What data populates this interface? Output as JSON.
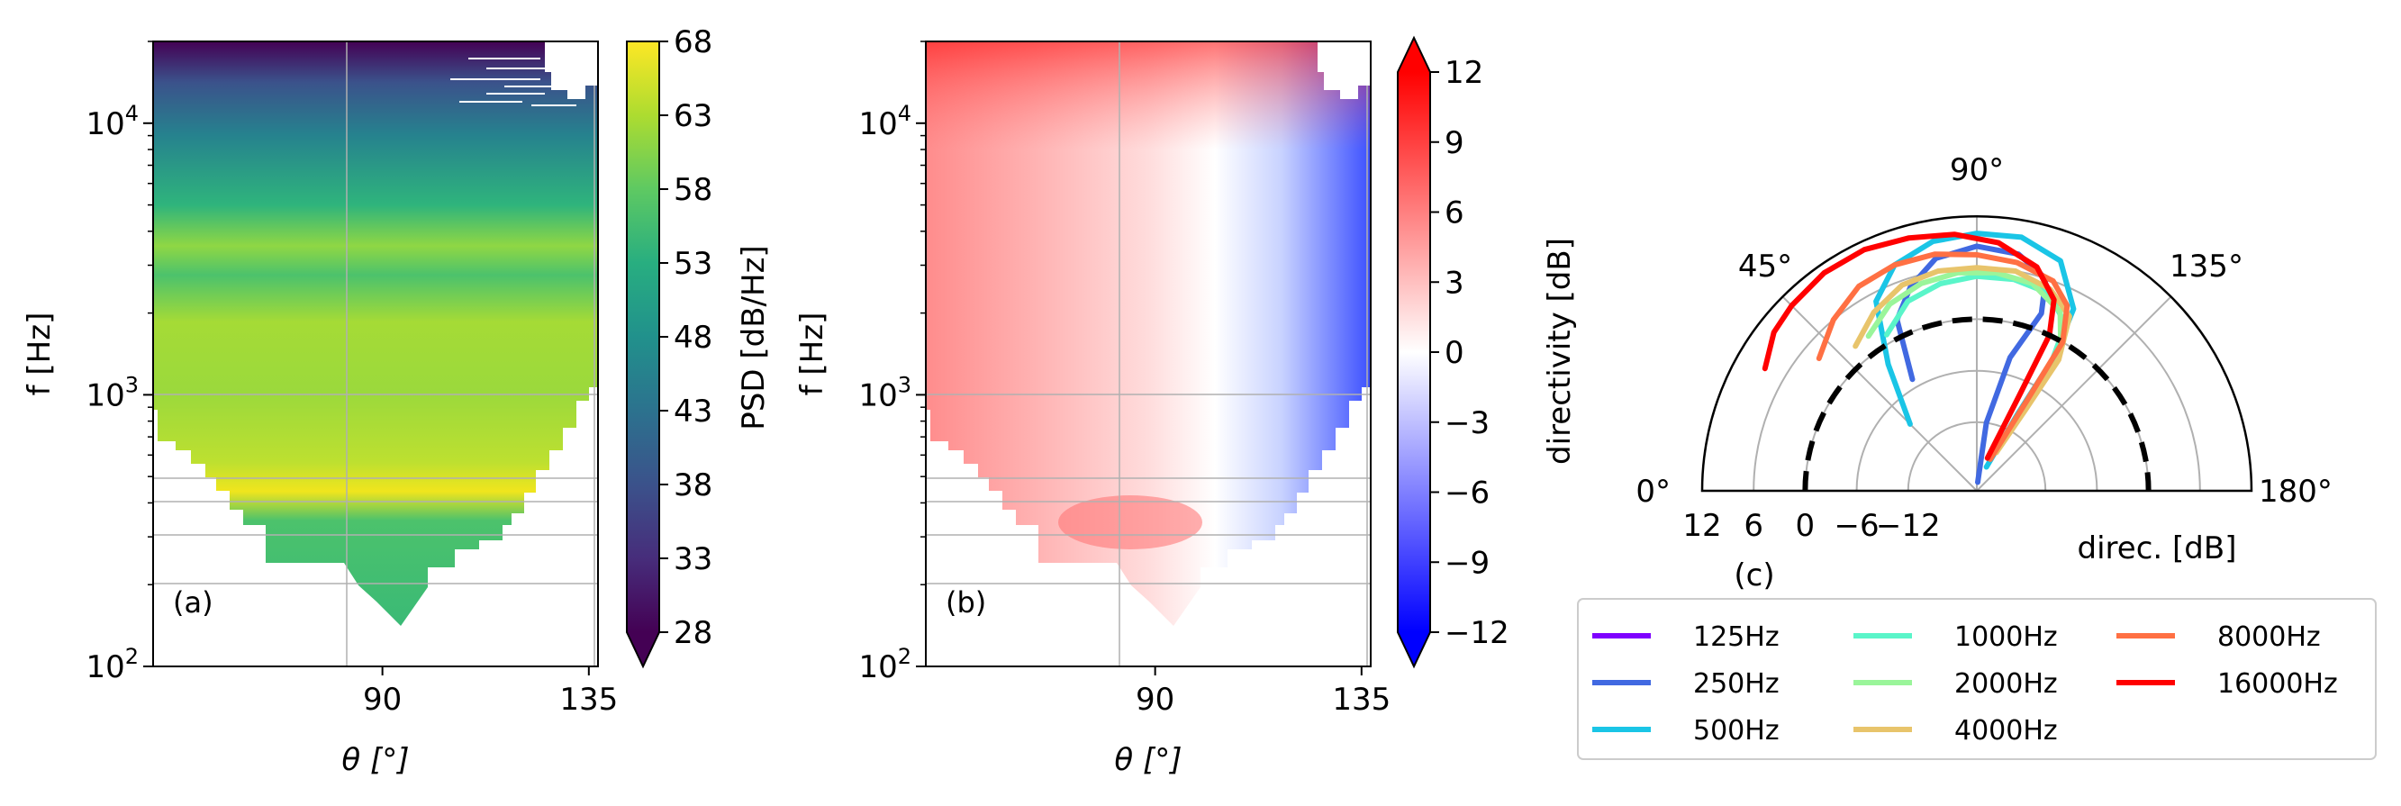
{
  "chart_data": [
    {
      "type": "heatmap",
      "panel_label": "(a)",
      "xlabel": "θ [°]",
      "ylabel": "f [Hz]",
      "xlim": [
        40,
        137
      ],
      "ylim": [
        100,
        20000
      ],
      "yscale": "log",
      "x_ticks": [
        90,
        135
      ],
      "y_ticks": [
        {
          "value": 100,
          "base": "10",
          "exp": "2"
        },
        {
          "value": 1000,
          "base": "10",
          "exp": "3"
        },
        {
          "value": 10000,
          "base": "10",
          "exp": "4"
        }
      ],
      "grid": true,
      "colormap": "viridis",
      "colorbar": {
        "label": "PSD [dB/Hz]",
        "min": 28,
        "max": 68,
        "ticks": [
          28,
          33,
          38,
          43,
          48,
          53,
          58,
          63,
          68
        ],
        "extend": "min"
      }
    },
    {
      "type": "heatmap",
      "panel_label": "(b)",
      "xlabel": "θ [°]",
      "ylabel": "f [Hz]",
      "xlim": [
        40,
        137
      ],
      "ylim": [
        100,
        20000
      ],
      "yscale": "log",
      "x_ticks": [
        90,
        135
      ],
      "y_ticks": [
        {
          "value": 100,
          "base": "10",
          "exp": "2"
        },
        {
          "value": 1000,
          "base": "10",
          "exp": "3"
        },
        {
          "value": 10000,
          "base": "10",
          "exp": "4"
        }
      ],
      "grid": true,
      "colormap": "bwr",
      "colorbar": {
        "label": "directivity [dB]",
        "min": -12,
        "max": 12,
        "ticks": [
          "12",
          "9",
          "6",
          "3",
          "0",
          "−3",
          "−6",
          "−9",
          "−12"
        ],
        "extend": "both"
      }
    },
    {
      "type": "line",
      "projection": "polar",
      "panel_label": "(c)",
      "theta_range": [
        0,
        180
      ],
      "theta_ticks": [
        "0°",
        "45°",
        "90°",
        "135°",
        "180°"
      ],
      "r_ticks": [
        "12",
        "6",
        "0",
        "−6",
        "−12"
      ],
      "r_label": "direc. [dB]",
      "r_range_db": [
        -20,
        12
      ],
      "reference_circle_db": 0,
      "legend": {
        "placement": "bottom",
        "columns": 3
      },
      "series": [
        {
          "name": "125Hz",
          "color": "#7f00ff",
          "points": []
        },
        {
          "name": "250Hz",
          "color": "#4169e1",
          "points": [
            [
              60,
              -5
            ],
            [
              65,
              2
            ],
            [
              72,
              5
            ],
            [
              80,
              7.5
            ],
            [
              90,
              8.5
            ],
            [
              100,
              8
            ],
            [
              108,
              6
            ],
            [
              110,
              2
            ],
            [
              104,
              -4
            ],
            [
              98,
              -12
            ],
            [
              96,
              -19
            ]
          ]
        },
        {
          "name": "500Hz",
          "color": "#1ac5e6",
          "points": [
            [
              45,
              -9
            ],
            [
              55,
              -2
            ],
            [
              62,
              5
            ],
            [
              70,
              8
            ],
            [
              80,
              9.5
            ],
            [
              90,
              10
            ],
            [
              100,
              10
            ],
            [
              110,
              8.5
            ],
            [
              118,
              4
            ],
            [
              120,
              -2
            ],
            [
              118,
              -10
            ],
            [
              112,
              -17
            ]
          ]
        },
        {
          "name": "1000Hz",
          "color": "#5af5c9",
          "points": [
            [
              60,
              1
            ],
            [
              70,
              3.5
            ],
            [
              80,
              4.5
            ],
            [
              90,
              5
            ],
            [
              100,
              5
            ],
            [
              110,
              4.5
            ],
            [
              118,
              2
            ],
            [
              121,
              -4
            ],
            [
              118,
              -12
            ]
          ]
        },
        {
          "name": "2000Hz",
          "color": "#9af59a",
          "points": [
            [
              55,
              2
            ],
            [
              65,
              4
            ],
            [
              75,
              5
            ],
            [
              85,
              5.5
            ],
            [
              95,
              5.5
            ],
            [
              105,
              5
            ],
            [
              115,
              3
            ],
            [
              121,
              -1
            ],
            [
              120,
              -8
            ],
            [
              116,
              -15
            ]
          ]
        },
        {
          "name": "4000Hz",
          "color": "#e8c46b",
          "points": [
            [
              50,
              2
            ],
            [
              60,
              4
            ],
            [
              70,
              5.5
            ],
            [
              80,
              6
            ],
            [
              90,
              6
            ],
            [
              100,
              6
            ],
            [
              110,
              5
            ],
            [
              118,
              3
            ],
            [
              122,
              -2
            ],
            [
              121,
              -9
            ],
            [
              117,
              -15
            ]
          ]
        },
        {
          "name": "8000Hz",
          "color": "#ff7043",
          "points": [
            [
              40,
              4
            ],
            [
              50,
              6
            ],
            [
              60,
              7.5
            ],
            [
              70,
              8
            ],
            [
              80,
              8
            ],
            [
              90,
              7.5
            ],
            [
              100,
              7
            ],
            [
              110,
              6
            ],
            [
              116,
              4
            ],
            [
              120,
              0
            ],
            [
              119,
              -8
            ],
            [
              113,
              -16
            ]
          ]
        },
        {
          "name": "16000Hz",
          "color": "#ff0000",
          "points": [
            [
              30,
              8.5
            ],
            [
              38,
              10
            ],
            [
              45,
              10.5
            ],
            [
              55,
              11
            ],
            [
              65,
              11
            ],
            [
              75,
              10.5
            ],
            [
              85,
              10
            ],
            [
              95,
              9
            ],
            [
              105,
              7
            ],
            [
              112,
              4
            ],
            [
              115,
              0
            ],
            [
              114,
              -8
            ],
            [
              108,
              -16
            ]
          ]
        }
      ]
    }
  ]
}
